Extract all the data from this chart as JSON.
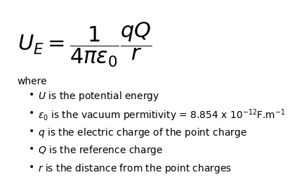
{
  "bg_color": "#ffffff",
  "formula_main": "$U_E = \\dfrac{1}{4\\pi\\varepsilon_0}\\dfrac{qQ}{r}$",
  "where_text": "where",
  "bullets": [
    "$U$ is the potential energy",
    "$\\varepsilon_0$ is the vacuum permitivity = 8.854 x 10$^{-12}$F.m$^{-1}$",
    "$q$ is the electric charge of the point charge",
    "$Q$ is the reference charge",
    "$r$ is the distance from the point charges"
  ],
  "formula_fontsize": 22,
  "where_fontsize": 10,
  "bullet_fontsize": 10,
  "text_color": "#000000"
}
